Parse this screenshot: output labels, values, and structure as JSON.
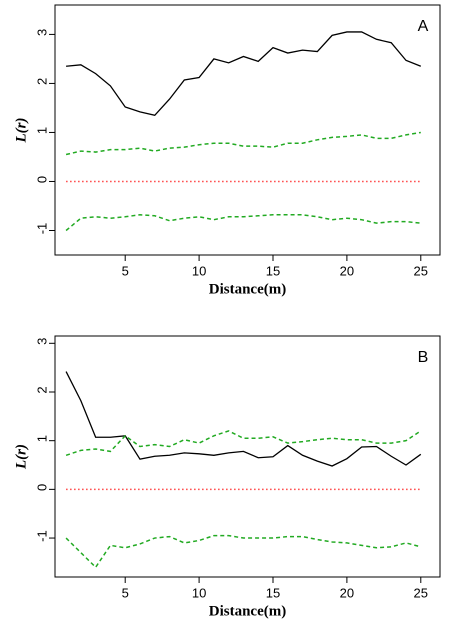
{
  "chart_data": [
    {
      "type": "line",
      "panel_label": "A",
      "xlabel": "Distance(m)",
      "ylabel": "L(r)",
      "x": [
        1,
        2,
        3,
        4,
        5,
        6,
        7,
        8,
        9,
        10,
        11,
        12,
        13,
        14,
        15,
        16,
        17,
        18,
        19,
        20,
        21,
        22,
        23,
        24,
        25
      ],
      "xlim": [
        0.25,
        26.3
      ],
      "ylim": [
        -1.5,
        3.6
      ],
      "xticks": [
        5,
        10,
        15,
        20,
        25
      ],
      "yticks": [
        -1,
        0,
        1,
        2,
        3
      ],
      "series": [
        {
          "color": "#000000",
          "style": "solid",
          "values": [
            2.35,
            2.38,
            2.2,
            1.95,
            1.52,
            1.42,
            1.35,
            1.68,
            2.07,
            2.12,
            2.5,
            2.42,
            2.55,
            2.45,
            2.73,
            2.62,
            2.68,
            2.65,
            2.98,
            3.05,
            3.05,
            2.9,
            2.83,
            2.47,
            2.35
          ]
        },
        {
          "color": "#22aa22",
          "style": "dashed",
          "values": [
            0.55,
            0.62,
            0.6,
            0.65,
            0.65,
            0.68,
            0.62,
            0.68,
            0.7,
            0.75,
            0.78,
            0.78,
            0.72,
            0.72,
            0.7,
            0.78,
            0.78,
            0.85,
            0.9,
            0.92,
            0.95,
            0.88,
            0.88,
            0.95,
            1.0
          ]
        },
        {
          "color": "#22aa22",
          "style": "dashed",
          "values": [
            -1.0,
            -0.75,
            -0.72,
            -0.75,
            -0.72,
            -0.68,
            -0.7,
            -0.8,
            -0.75,
            -0.72,
            -0.78,
            -0.72,
            -0.72,
            -0.7,
            -0.68,
            -0.68,
            -0.68,
            -0.72,
            -0.78,
            -0.75,
            -0.78,
            -0.85,
            -0.82,
            -0.82,
            -0.85
          ]
        },
        {
          "color": "#ff4444",
          "style": "dotted",
          "values": [
            0,
            0,
            0,
            0,
            0,
            0,
            0,
            0,
            0,
            0,
            0,
            0,
            0,
            0,
            0,
            0,
            0,
            0,
            0,
            0,
            0,
            0,
            0,
            0,
            0
          ]
        }
      ]
    },
    {
      "type": "line",
      "panel_label": "B",
      "xlabel": "Distance(m)",
      "ylabel": "L(r)",
      "x": [
        1,
        2,
        3,
        4,
        5,
        6,
        7,
        8,
        9,
        10,
        11,
        12,
        13,
        14,
        15,
        16,
        17,
        18,
        19,
        20,
        21,
        22,
        23,
        24,
        25
      ],
      "xlim": [
        0.25,
        26.3
      ],
      "ylim": [
        -1.8,
        3.15
      ],
      "xticks": [
        5,
        10,
        15,
        20,
        25
      ],
      "yticks": [
        -1,
        0,
        1,
        2,
        3
      ],
      "series": [
        {
          "color": "#000000",
          "style": "solid",
          "values": [
            2.42,
            1.82,
            1.07,
            1.07,
            1.1,
            0.62,
            0.68,
            0.7,
            0.75,
            0.73,
            0.7,
            0.75,
            0.78,
            0.65,
            0.67,
            0.9,
            0.7,
            0.58,
            0.48,
            0.63,
            0.87,
            0.88,
            0.68,
            0.5,
            0.72
          ]
        },
        {
          "color": "#22aa22",
          "style": "dashed",
          "values": [
            0.7,
            0.8,
            0.83,
            0.78,
            1.1,
            0.88,
            0.92,
            0.88,
            1.02,
            0.95,
            1.1,
            1.2,
            1.05,
            1.05,
            1.08,
            0.95,
            0.98,
            1.02,
            1.05,
            1.02,
            1.02,
            0.95,
            0.95,
            1.0,
            1.2
          ]
        },
        {
          "color": "#22aa22",
          "style": "dashed",
          "values": [
            -1.0,
            -1.3,
            -1.6,
            -1.15,
            -1.2,
            -1.12,
            -1.0,
            -0.97,
            -1.1,
            -1.05,
            -0.95,
            -0.95,
            -1.0,
            -1.0,
            -1.0,
            -0.97,
            -0.97,
            -1.03,
            -1.08,
            -1.1,
            -1.15,
            -1.2,
            -1.18,
            -1.1,
            -1.18
          ]
        },
        {
          "color": "#ff4444",
          "style": "dotted",
          "values": [
            0,
            0,
            0,
            0,
            0,
            0,
            0,
            0,
            0,
            0,
            0,
            0,
            0,
            0,
            0,
            0,
            0,
            0,
            0,
            0,
            0,
            0,
            0,
            0,
            0
          ]
        }
      ]
    }
  ]
}
